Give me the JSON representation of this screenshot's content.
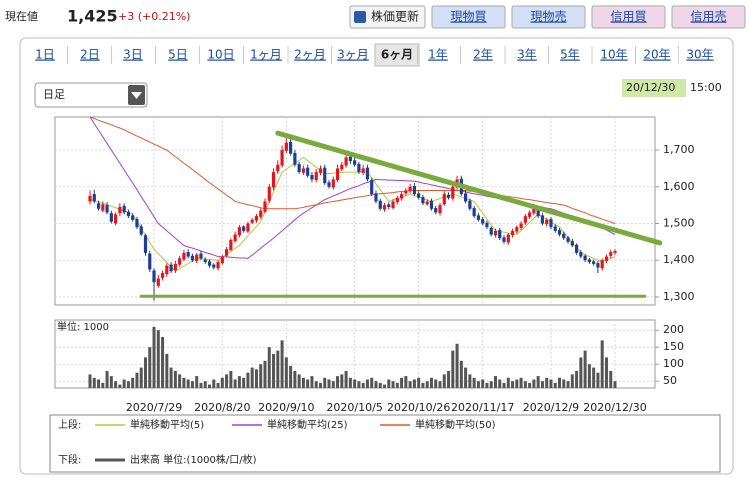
{
  "header": {
    "price_label": "現在値",
    "price": "1,425",
    "change": "+3 (+0.21%)"
  },
  "buttons": [
    "株価更新",
    "現物買",
    "現物売",
    "信用買",
    "信用売"
  ],
  "periods": [
    "1日",
    "2日",
    "3日",
    "5日",
    "10日",
    "1ヶ月",
    "2ヶ月",
    "3ヶ月",
    "6ヶ月",
    "1年",
    "2年",
    "3年",
    "5年",
    "10年",
    "20年",
    "30年"
  ],
  "selected_period_index": 8,
  "interval": "日足",
  "timestamp": {
    "date": "20/12/30",
    "time": "15:00"
  },
  "chart_data": {
    "type": "candlestick",
    "categories": [
      null,
      null,
      null,
      null,
      null,
      null,
      null,
      null,
      null,
      null,
      null,
      null,
      null,
      null,
      null,
      "2020/7/29",
      null,
      null,
      null,
      null,
      null,
      null,
      null,
      null,
      null,
      null,
      null,
      null,
      null,
      null,
      null,
      "2020/8/20",
      null,
      null,
      null,
      null,
      null,
      null,
      null,
      null,
      null,
      null,
      null,
      null,
      null,
      null,
      "2020/9/10",
      null,
      null,
      null,
      null,
      null,
      null,
      null,
      null,
      null,
      null,
      null,
      null,
      null,
      null,
      null,
      "2020/10/5",
      null,
      null,
      null,
      null,
      null,
      null,
      null,
      null,
      null,
      null,
      null,
      null,
      null,
      null,
      "2020/10/26",
      null,
      null,
      null,
      null,
      null,
      null,
      null,
      null,
      null,
      null,
      null,
      null,
      null,
      null,
      "2020/11/17",
      null,
      null,
      null,
      null,
      null,
      null,
      null,
      null,
      null,
      null,
      null,
      null,
      null,
      null,
      null,
      "2020/12/9",
      null,
      null,
      null,
      null,
      null,
      null,
      null,
      null,
      null,
      null,
      null,
      null,
      null,
      null,
      "2020/12/30"
    ],
    "open": [
      1560,
      1580,
      1555,
      1535,
      1550,
      1528,
      1500,
      1528,
      1548,
      1532,
      1522,
      1512,
      1492,
      1468,
      1418,
      1372,
      1330,
      1352,
      1362,
      1388,
      1372,
      1388,
      1402,
      1422,
      1412,
      1398,
      1418,
      1402,
      1397,
      1388,
      1378,
      1392,
      1412,
      1428,
      1452,
      1468,
      1492,
      1478,
      1502,
      1508,
      1518,
      1532,
      1562,
      1598,
      1642,
      1658,
      1698,
      1722,
      1692,
      1662,
      1638,
      1652,
      1632,
      1618,
      1638,
      1652,
      1612,
      1598,
      1618,
      1648,
      1658,
      1682,
      1672,
      1662,
      1638,
      1652,
      1618,
      1582,
      1562,
      1538,
      1552,
      1542,
      1558,
      1568,
      1582,
      1588,
      1602,
      1582,
      1572,
      1552,
      1562,
      1542,
      1528,
      1552,
      1578,
      1568,
      1598,
      1622,
      1582,
      1562,
      1542,
      1522,
      1512,
      1502,
      1488,
      1468,
      1482,
      1462,
      1448,
      1468,
      1478,
      1488,
      1502,
      1518,
      1528,
      1542,
      1522,
      1498,
      1512,
      1492,
      1482,
      1472,
      1462,
      1452,
      1442,
      1422,
      1412,
      1402,
      1397,
      1392,
      1378,
      1398,
      1412,
      1420
    ],
    "high": [
      1590,
      1592,
      1562,
      1560,
      1558,
      1535,
      1530,
      1555,
      1555,
      1538,
      1528,
      1518,
      1498,
      1472,
      1425,
      1378,
      1360,
      1372,
      1392,
      1395,
      1398,
      1412,
      1428,
      1430,
      1418,
      1420,
      1425,
      1408,
      1402,
      1392,
      1400,
      1415,
      1436,
      1460,
      1478,
      1496,
      1495,
      1505,
      1515,
      1526,
      1542,
      1568,
      1608,
      1650,
      1672,
      1712,
      1745,
      1730,
      1700,
      1668,
      1658,
      1660,
      1640,
      1648,
      1658,
      1660,
      1618,
      1628,
      1660,
      1668,
      1690,
      1690,
      1680,
      1668,
      1660,
      1660,
      1625,
      1590,
      1568,
      1556,
      1558,
      1566,
      1575,
      1586,
      1596,
      1608,
      1610,
      1588,
      1578,
      1566,
      1568,
      1548,
      1556,
      1588,
      1585,
      1605,
      1630,
      1630,
      1590,
      1568,
      1548,
      1528,
      1518,
      1508,
      1492,
      1486,
      1488,
      1468,
      1474,
      1486,
      1495,
      1506,
      1526,
      1536,
      1548,
      1548,
      1528,
      1515,
      1518,
      1498,
      1488,
      1478,
      1466,
      1458,
      1446,
      1428,
      1416,
      1406,
      1402,
      1398,
      1405,
      1416,
      1428,
      1430
    ],
    "low": [
      1552,
      1555,
      1535,
      1530,
      1525,
      1500,
      1495,
      1520,
      1525,
      1515,
      1505,
      1485,
      1465,
      1412,
      1368,
      1290,
      1325,
      1345,
      1355,
      1365,
      1365,
      1382,
      1398,
      1405,
      1395,
      1392,
      1400,
      1390,
      1380,
      1375,
      1372,
      1388,
      1408,
      1425,
      1448,
      1462,
      1475,
      1474,
      1498,
      1502,
      1512,
      1528,
      1555,
      1590,
      1635,
      1652,
      1692,
      1685,
      1655,
      1635,
      1632,
      1625,
      1612,
      1612,
      1632,
      1605,
      1595,
      1592,
      1612,
      1642,
      1652,
      1662,
      1655,
      1635,
      1632,
      1615,
      1575,
      1555,
      1535,
      1532,
      1538,
      1538,
      1552,
      1562,
      1576,
      1582,
      1575,
      1565,
      1550,
      1548,
      1535,
      1525,
      1522,
      1548,
      1565,
      1562,
      1592,
      1575,
      1555,
      1535,
      1515,
      1505,
      1495,
      1485,
      1465,
      1462,
      1455,
      1445,
      1442,
      1462,
      1472,
      1482,
      1496,
      1512,
      1522,
      1515,
      1495,
      1492,
      1485,
      1475,
      1465,
      1455,
      1445,
      1435,
      1415,
      1405,
      1395,
      1390,
      1385,
      1365,
      1372,
      1392,
      1405,
      1415
    ],
    "close": [
      1575,
      1560,
      1540,
      1552,
      1530,
      1505,
      1525,
      1545,
      1530,
      1520,
      1510,
      1490,
      1470,
      1420,
      1375,
      1340,
      1350,
      1365,
      1385,
      1370,
      1390,
      1405,
      1420,
      1410,
      1400,
      1415,
      1405,
      1395,
      1385,
      1380,
      1395,
      1410,
      1430,
      1455,
      1470,
      1490,
      1480,
      1500,
      1510,
      1520,
      1535,
      1560,
      1600,
      1640,
      1660,
      1700,
      1720,
      1690,
      1660,
      1640,
      1650,
      1630,
      1620,
      1640,
      1650,
      1610,
      1600,
      1620,
      1650,
      1660,
      1680,
      1670,
      1660,
      1640,
      1650,
      1620,
      1580,
      1560,
      1540,
      1550,
      1545,
      1560,
      1570,
      1580,
      1590,
      1600,
      1580,
      1570,
      1555,
      1560,
      1540,
      1530,
      1550,
      1580,
      1570,
      1600,
      1620,
      1580,
      1560,
      1540,
      1520,
      1510,
      1500,
      1490,
      1470,
      1480,
      1460,
      1450,
      1470,
      1480,
      1490,
      1500,
      1520,
      1530,
      1540,
      1520,
      1500,
      1510,
      1490,
      1480,
      1470,
      1460,
      1450,
      1440,
      1420,
      1410,
      1400,
      1395,
      1390,
      1380,
      1400,
      1410,
      1422,
      1425
    ],
    "up_color": "#e8141c",
    "down_color": "#1c3f94",
    "ylim": [
      1278,
      1790
    ],
    "yticks": [
      {
        "value": 1300,
        "label": "1,300"
      },
      {
        "value": 1400,
        "label": "1,400"
      },
      {
        "value": 1500,
        "label": "1,500"
      },
      {
        "value": 1600,
        "label": "1,600"
      },
      {
        "value": 1700,
        "label": "1,700"
      }
    ],
    "grid": true,
    "moving_averages": [
      {
        "name": "単純移動平均(5)",
        "color": "#b5c93a",
        "values": [
          1565,
          1562,
          1558,
          1555,
          1551,
          1547,
          1543,
          1538,
          1534,
          1530,
          1525,
          1506,
          1487,
          1468,
          1449,
          1430,
          1418,
          1406,
          1394,
          1382,
          1370,
          1377,
          1384,
          1391,
          1398,
          1405,
          1404,
          1403,
          1402,
          1401,
          1400,
          1408,
          1416,
          1424,
          1432,
          1440,
          1453,
          1466,
          1479,
          1492,
          1505,
          1532,
          1559,
          1586,
          1613,
          1640,
          1648,
          1656,
          1664,
          1672,
          1680,
          1671,
          1662,
          1653,
          1644,
          1635,
          1636,
          1637,
          1638,
          1639,
          1640,
          1640,
          1640,
          1640,
          1640,
          1640,
          1624,
          1608,
          1592,
          1576,
          1560,
          1564,
          1568,
          1572,
          1576,
          1580,
          1576,
          1572,
          1568,
          1564,
          1560,
          1564,
          1568,
          1572,
          1576,
          1580,
          1576,
          1572,
          1568,
          1564,
          1560,
          1544,
          1528,
          1512,
          1496,
          1480,
          1478,
          1476,
          1474,
          1472,
          1470,
          1481,
          1492,
          1503,
          1514,
          1525,
          1518,
          1511,
          1504,
          1497,
          1490,
          1476,
          1462,
          1448,
          1434,
          1420,
          1415,
          1410,
          1405,
          1400,
          1395,
          1400,
          1405,
          1410
        ]
      },
      {
        "name": "単純移動平均(25)",
        "color": "#a040d0",
        "values": [
          1790,
          1772,
          1754,
          1736,
          1718,
          1700,
          1682,
          1664,
          1646,
          1628,
          1610,
          1592,
          1573,
          1555,
          1537,
          1518,
          1500,
          1490,
          1480,
          1470,
          1460,
          1450,
          1440,
          1436,
          1433,
          1429,
          1425,
          1421,
          1418,
          1414,
          1410,
          1409,
          1409,
          1408,
          1407,
          1406,
          1406,
          1405,
          1414,
          1423,
          1433,
          1442,
          1451,
          1460,
          1470,
          1480,
          1490,
          1500,
          1510,
          1520,
          1528,
          1535,
          1543,
          1550,
          1558,
          1565,
          1570,
          1575,
          1580,
          1585,
          1590,
          1595,
          1599,
          1603,
          1608,
          1612,
          1616,
          1620,
          1619,
          1619,
          1618,
          1618,
          1617,
          1617,
          1616,
          1616,
          1615,
          1613,
          1610,
          1608,
          1605,
          1603,
          1600,
          1598,
          1595,
          1593,
          1590,
          1588,
          1586,
          1583,
          1581,
          1579,
          1577,
          1574,
          1572,
          1570,
          1568,
          1565,
          1563,
          1561,
          1558,
          1556,
          1554,
          1551,
          1549,
          1547,
          1545,
          1542,
          1540,
          1536,
          1532,
          1528,
          1524,
          1520,
          1517,
          1513,
          1509,
          1505,
          1499,
          1493,
          1488,
          1482,
          1476,
          1470
        ]
      },
      {
        "name": "単純移動平均(50)",
        "color": "#e05a2a",
        "values": [
          1790,
          1786,
          1781,
          1777,
          1773,
          1769,
          1764,
          1760,
          1755,
          1749,
          1744,
          1738,
          1733,
          1727,
          1722,
          1716,
          1711,
          1705,
          1700,
          1691,
          1682,
          1673,
          1664,
          1656,
          1647,
          1638,
          1629,
          1620,
          1611,
          1603,
          1594,
          1586,
          1577,
          1569,
          1560,
          1557,
          1554,
          1551,
          1549,
          1546,
          1543,
          1540,
          1540,
          1540,
          1540,
          1540,
          1540,
          1540,
          1540,
          1542,
          1544,
          1547,
          1549,
          1551,
          1553,
          1556,
          1558,
          1560,
          1562,
          1564,
          1566,
          1568,
          1570,
          1572,
          1574,
          1576,
          1578,
          1580,
          1581,
          1582,
          1583,
          1584,
          1586,
          1587,
          1588,
          1589,
          1590,
          1590,
          1590,
          1590,
          1590,
          1590,
          1590,
          1590,
          1590,
          1590,
          1590,
          1590,
          1590,
          1588,
          1587,
          1585,
          1583,
          1582,
          1580,
          1578,
          1577,
          1575,
          1573,
          1572,
          1570,
          1568,
          1566,
          1565,
          1563,
          1561,
          1559,
          1557,
          1555,
          1554,
          1552,
          1550,
          1546,
          1541,
          1537,
          1533,
          1529,
          1524,
          1520,
          1516,
          1512,
          1508,
          1504,
          1500
        ]
      }
    ],
    "trendlines": [
      {
        "color": "#78ab3c",
        "x": [
          44,
          133.5
        ],
        "values": [
          1746,
          1447
        ]
      },
      {
        "color": "#78ab3c",
        "x": [
          12,
          130
        ],
        "values": [
          1302,
          1302
        ]
      }
    ],
    "volume": {
      "unit_label": "単位: 1000",
      "color": "#555555",
      "ylim": [
        30,
        230
      ],
      "yticks": [
        50,
        100,
        150,
        200
      ],
      "values": [
        70,
        60,
        55,
        45,
        80,
        65,
        50,
        40,
        55,
        50,
        60,
        75,
        90,
        120,
        150,
        210,
        200,
        180,
        130,
        90,
        80,
        70,
        60,
        55,
        50,
        65,
        45,
        50,
        40,
        55,
        45,
        60,
        70,
        80,
        55,
        65,
        60,
        75,
        90,
        85,
        100,
        110,
        150,
        130,
        140,
        170,
        120,
        95,
        80,
        70,
        60,
        55,
        65,
        50,
        45,
        60,
        55,
        50,
        65,
        70,
        80,
        60,
        55,
        50,
        45,
        55,
        60,
        50,
        45,
        40,
        55,
        50,
        45,
        60,
        65,
        50,
        55,
        60,
        45,
        50,
        60,
        55,
        50,
        70,
        80,
        140,
        160,
        110,
        90,
        70,
        60,
        50,
        55,
        45,
        50,
        65,
        55,
        45,
        60,
        50,
        55,
        60,
        50,
        45,
        55,
        65,
        50,
        60,
        55,
        45,
        60,
        55,
        50,
        70,
        80,
        120,
        140,
        100,
        90,
        75,
        170,
        120,
        80,
        50
      ]
    },
    "legend": {
      "upper_label": "上段:",
      "lower_label": "下段:",
      "volume_name": "出来高 単位:(1000株/口/枚)"
    }
  }
}
